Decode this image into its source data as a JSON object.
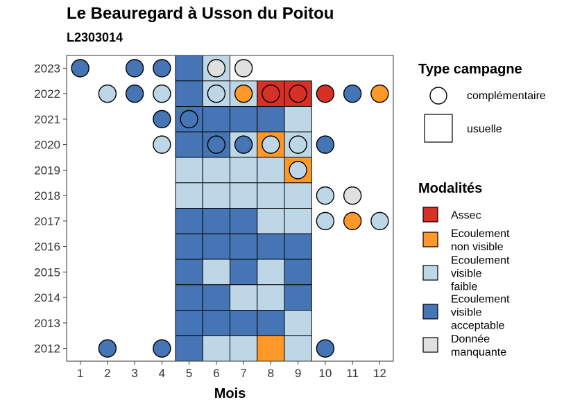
{
  "title": "Le Beauregard à Usson du Poitou",
  "subtitle": "L2303014",
  "chart_data": {
    "type": "heatmap",
    "xlabel": "Mois",
    "ylabel": "",
    "x_ticks": [
      1,
      2,
      3,
      4,
      5,
      6,
      7,
      8,
      9,
      10,
      11,
      12
    ],
    "y_ticks": [
      2012,
      2013,
      2014,
      2015,
      2016,
      2017,
      2018,
      2019,
      2020,
      2021,
      2022,
      2023
    ],
    "xlim": [
      0.5,
      12.5
    ],
    "ylim": [
      2011.5,
      2023.5
    ],
    "colors": {
      "Assec": "#d73027",
      "Ecoulement non visible": "#fe9929",
      "Ecoulement visible faible": "#bdd7e7",
      "Ecoulement visible acceptable": "#4575b4",
      "Donnée manquante": "#e0e0e0"
    },
    "usuelle": [
      {
        "x": 5,
        "y": 2023,
        "m": "Ecoulement visible acceptable"
      },
      {
        "x": 6,
        "y": 2023,
        "m": "Ecoulement visible faible"
      },
      {
        "x": 5,
        "y": 2022,
        "m": "Ecoulement visible acceptable"
      },
      {
        "x": 6,
        "y": 2022,
        "m": "Ecoulement visible faible"
      },
      {
        "x": 7,
        "y": 2022,
        "m": "Ecoulement visible faible"
      },
      {
        "x": 8,
        "y": 2022,
        "m": "Assec"
      },
      {
        "x": 9,
        "y": 2022,
        "m": "Assec"
      },
      {
        "x": 5,
        "y": 2021,
        "m": "Ecoulement visible acceptable"
      },
      {
        "x": 6,
        "y": 2021,
        "m": "Ecoulement visible acceptable"
      },
      {
        "x": 7,
        "y": 2021,
        "m": "Ecoulement visible acceptable"
      },
      {
        "x": 8,
        "y": 2021,
        "m": "Ecoulement visible acceptable"
      },
      {
        "x": 9,
        "y": 2021,
        "m": "Ecoulement visible faible"
      },
      {
        "x": 5,
        "y": 2020,
        "m": "Ecoulement visible acceptable"
      },
      {
        "x": 6,
        "y": 2020,
        "m": "Ecoulement visible acceptable"
      },
      {
        "x": 7,
        "y": 2020,
        "m": "Ecoulement visible faible"
      },
      {
        "x": 8,
        "y": 2020,
        "m": "Ecoulement non visible"
      },
      {
        "x": 9,
        "y": 2020,
        "m": "Ecoulement visible faible"
      },
      {
        "x": 5,
        "y": 2019,
        "m": "Ecoulement visible faible"
      },
      {
        "x": 6,
        "y": 2019,
        "m": "Ecoulement visible faible"
      },
      {
        "x": 7,
        "y": 2019,
        "m": "Ecoulement visible faible"
      },
      {
        "x": 8,
        "y": 2019,
        "m": "Ecoulement visible faible"
      },
      {
        "x": 9,
        "y": 2019,
        "m": "Ecoulement non visible"
      },
      {
        "x": 5,
        "y": 2018,
        "m": "Ecoulement visible faible"
      },
      {
        "x": 6,
        "y": 2018,
        "m": "Ecoulement visible faible"
      },
      {
        "x": 7,
        "y": 2018,
        "m": "Ecoulement visible faible"
      },
      {
        "x": 8,
        "y": 2018,
        "m": "Ecoulement visible faible"
      },
      {
        "x": 9,
        "y": 2018,
        "m": "Ecoulement visible faible"
      },
      {
        "x": 5,
        "y": 2017,
        "m": "Ecoulement visible acceptable"
      },
      {
        "x": 6,
        "y": 2017,
        "m": "Ecoulement visible acceptable"
      },
      {
        "x": 7,
        "y": 2017,
        "m": "Ecoulement visible acceptable"
      },
      {
        "x": 8,
        "y": 2017,
        "m": "Ecoulement visible faible"
      },
      {
        "x": 9,
        "y": 2017,
        "m": "Ecoulement visible faible"
      },
      {
        "x": 5,
        "y": 2016,
        "m": "Ecoulement visible acceptable"
      },
      {
        "x": 6,
        "y": 2016,
        "m": "Ecoulement visible acceptable"
      },
      {
        "x": 7,
        "y": 2016,
        "m": "Ecoulement visible acceptable"
      },
      {
        "x": 8,
        "y": 2016,
        "m": "Ecoulement visible acceptable"
      },
      {
        "x": 9,
        "y": 2016,
        "m": "Ecoulement visible acceptable"
      },
      {
        "x": 5,
        "y": 2015,
        "m": "Ecoulement visible acceptable"
      },
      {
        "x": 6,
        "y": 2015,
        "m": "Ecoulement visible faible"
      },
      {
        "x": 7,
        "y": 2015,
        "m": "Ecoulement visible acceptable"
      },
      {
        "x": 8,
        "y": 2015,
        "m": "Ecoulement visible faible"
      },
      {
        "x": 9,
        "y": 2015,
        "m": "Ecoulement visible acceptable"
      },
      {
        "x": 5,
        "y": 2014,
        "m": "Ecoulement visible acceptable"
      },
      {
        "x": 6,
        "y": 2014,
        "m": "Ecoulement visible acceptable"
      },
      {
        "x": 7,
        "y": 2014,
        "m": "Ecoulement visible faible"
      },
      {
        "x": 8,
        "y": 2014,
        "m": "Ecoulement visible faible"
      },
      {
        "x": 9,
        "y": 2014,
        "m": "Ecoulement visible acceptable"
      },
      {
        "x": 5,
        "y": 2013,
        "m": "Ecoulement visible acceptable"
      },
      {
        "x": 6,
        "y": 2013,
        "m": "Ecoulement visible acceptable"
      },
      {
        "x": 7,
        "y": 2013,
        "m": "Ecoulement visible acceptable"
      },
      {
        "x": 8,
        "y": 2013,
        "m": "Ecoulement visible acceptable"
      },
      {
        "x": 9,
        "y": 2013,
        "m": "Ecoulement visible faible"
      },
      {
        "x": 5,
        "y": 2012,
        "m": "Ecoulement visible acceptable"
      },
      {
        "x": 6,
        "y": 2012,
        "m": "Ecoulement visible faible"
      },
      {
        "x": 7,
        "y": 2012,
        "m": "Ecoulement visible faible"
      },
      {
        "x": 8,
        "y": 2012,
        "m": "Ecoulement non visible"
      },
      {
        "x": 9,
        "y": 2012,
        "m": "Ecoulement visible faible"
      }
    ],
    "complementaire": [
      {
        "x": 1,
        "y": 2023,
        "m": "Ecoulement visible acceptable"
      },
      {
        "x": 3,
        "y": 2023,
        "m": "Ecoulement visible acceptable"
      },
      {
        "x": 4,
        "y": 2023,
        "m": "Ecoulement visible acceptable"
      },
      {
        "x": 6,
        "y": 2023,
        "m": "Donnée manquante"
      },
      {
        "x": 7,
        "y": 2023,
        "m": "Donnée manquante"
      },
      {
        "x": 2,
        "y": 2022,
        "m": "Ecoulement visible faible"
      },
      {
        "x": 3,
        "y": 2022,
        "m": "Ecoulement visible acceptable"
      },
      {
        "x": 4,
        "y": 2022,
        "m": "Ecoulement visible faible"
      },
      {
        "x": 6,
        "y": 2022,
        "m": "Ecoulement visible faible"
      },
      {
        "x": 7,
        "y": 2022,
        "m": "Ecoulement non visible"
      },
      {
        "x": 8,
        "y": 2022,
        "m": "Assec"
      },
      {
        "x": 9,
        "y": 2022,
        "m": "Assec"
      },
      {
        "x": 10,
        "y": 2022,
        "m": "Assec"
      },
      {
        "x": 11,
        "y": 2022,
        "m": "Ecoulement visible acceptable"
      },
      {
        "x": 12,
        "y": 2022,
        "m": "Ecoulement non visible"
      },
      {
        "x": 4,
        "y": 2021,
        "m": "Ecoulement visible acceptable"
      },
      {
        "x": 5,
        "y": 2021,
        "m": "Ecoulement visible acceptable"
      },
      {
        "x": 4,
        "y": 2020,
        "m": "Ecoulement visible faible"
      },
      {
        "x": 6,
        "y": 2020,
        "m": "Ecoulement visible acceptable"
      },
      {
        "x": 7,
        "y": 2020,
        "m": "Ecoulement visible acceptable"
      },
      {
        "x": 8,
        "y": 2020,
        "m": "Ecoulement visible faible"
      },
      {
        "x": 9,
        "y": 2020,
        "m": "Ecoulement visible faible"
      },
      {
        "x": 10,
        "y": 2020,
        "m": "Ecoulement visible acceptable"
      },
      {
        "x": 9,
        "y": 2019,
        "m": "Ecoulement visible faible"
      },
      {
        "x": 10,
        "y": 2018,
        "m": "Ecoulement visible faible"
      },
      {
        "x": 11,
        "y": 2018,
        "m": "Donnée manquante"
      },
      {
        "x": 10,
        "y": 2017,
        "m": "Ecoulement visible faible"
      },
      {
        "x": 11,
        "y": 2017,
        "m": "Ecoulement non visible"
      },
      {
        "x": 12,
        "y": 2017,
        "m": "Ecoulement visible faible"
      },
      {
        "x": 2,
        "y": 2012,
        "m": "Ecoulement visible acceptable"
      },
      {
        "x": 4,
        "y": 2012,
        "m": "Ecoulement visible acceptable"
      },
      {
        "x": 10,
        "y": 2012,
        "m": "Ecoulement visible acceptable"
      }
    ],
    "legend_type": {
      "title": "Type campagne",
      "items": [
        "complémentaire",
        "usuelle"
      ]
    },
    "legend_modalites": {
      "title": "Modalités",
      "items": [
        {
          "key": "Assec",
          "lines": [
            "Assec"
          ]
        },
        {
          "key": "Ecoulement non visible",
          "lines": [
            "Ecoulement",
            "non visible"
          ]
        },
        {
          "key": "Ecoulement visible faible",
          "lines": [
            "Ecoulement",
            "visible",
            "faible"
          ]
        },
        {
          "key": "Ecoulement visible acceptable",
          "lines": [
            "Ecoulement",
            "visible",
            "acceptable"
          ]
        },
        {
          "key": "Donnée manquante",
          "lines": [
            "Donnée",
            "manquante"
          ]
        }
      ]
    },
    "legend_placement": "right",
    "grid": false
  }
}
